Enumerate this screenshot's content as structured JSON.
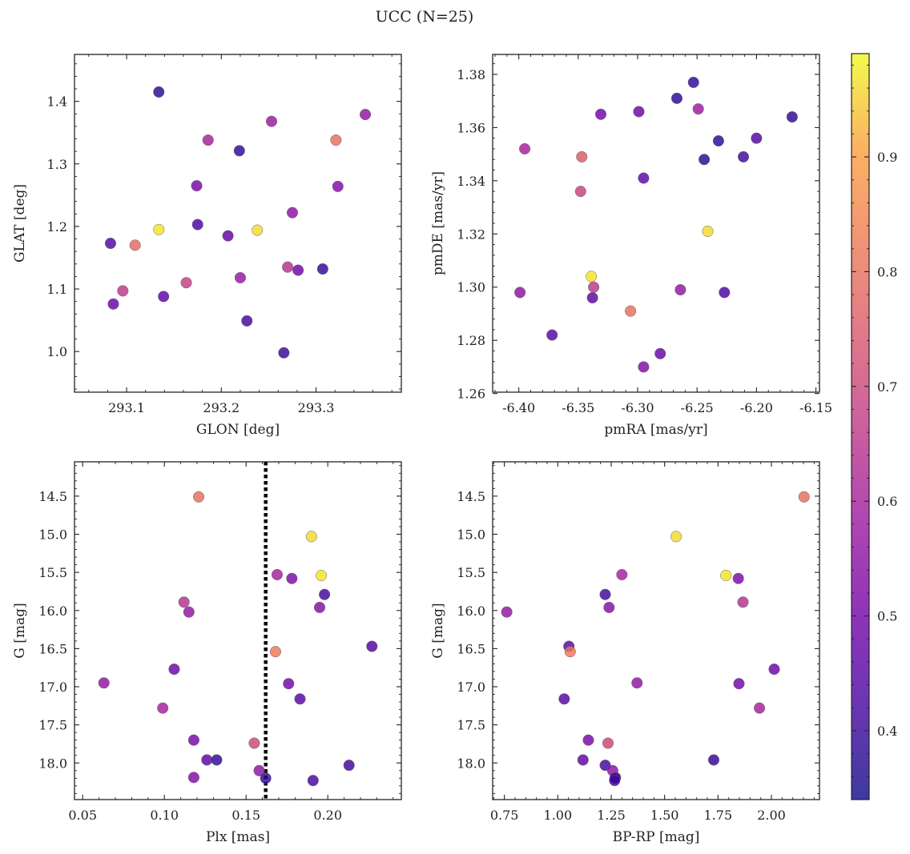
{
  "figure": {
    "title": "UCC (N=25)"
  },
  "colorbar": {
    "range": [
      0.34,
      0.99
    ],
    "ticks": [
      0.4,
      0.5,
      0.6,
      0.7,
      0.8,
      0.9
    ],
    "tick_labels": [
      "0.4",
      "0.5",
      "0.6",
      "0.7",
      "0.8",
      "0.9"
    ],
    "colormap": "plasma"
  },
  "chart_data": [
    {
      "type": "scatter",
      "xlabel": "GLON [deg]",
      "ylabel": "GLAT [deg]",
      "xlim": [
        293.045,
        293.39
      ],
      "ylim": [
        0.935,
        1.475
      ],
      "xticks": [
        293.1,
        293.2,
        293.3
      ],
      "xtick_labels": [
        "293.1",
        "293.2",
        "293.3"
      ],
      "yticks": [
        1.0,
        1.1,
        1.2,
        1.3,
        1.4
      ],
      "ytick_labels": [
        "1.0",
        "1.1",
        "1.2",
        "1.3",
        "1.4"
      ],
      "x": [
        293.134,
        293.083,
        293.109,
        293.096,
        293.086,
        293.134,
        293.139,
        293.163,
        293.174,
        293.175,
        293.186,
        293.207,
        293.219,
        293.22,
        293.227,
        293.238,
        293.253,
        293.266,
        293.27,
        293.275,
        293.281,
        293.307,
        293.321,
        293.323,
        293.352
      ],
      "y": [
        1.415,
        1.173,
        1.17,
        1.097,
        1.076,
        1.195,
        1.088,
        1.11,
        1.265,
        1.203,
        1.338,
        1.185,
        1.321,
        1.118,
        1.049,
        1.194,
        1.368,
        0.998,
        1.135,
        1.222,
        1.13,
        1.132,
        1.338,
        1.264,
        1.379
      ],
      "c": [
        0.38,
        0.44,
        0.79,
        0.66,
        0.48,
        0.97,
        0.46,
        0.68,
        0.51,
        0.43,
        0.6,
        0.47,
        0.38,
        0.57,
        0.41,
        0.96,
        0.58,
        0.4,
        0.64,
        0.55,
        0.49,
        0.39,
        0.8,
        0.53,
        0.56
      ]
    },
    {
      "type": "scatter",
      "xlabel": "pmRA [mas/yr]",
      "ylabel": "pmDE [mas/yr]",
      "xlim": [
        -6.422,
        -6.147
      ],
      "ylim": [
        1.2605,
        1.3875
      ],
      "xticks": [
        -6.4,
        -6.35,
        -6.3,
        -6.25,
        -6.2,
        -6.15
      ],
      "xtick_labels": [
        "-6.40",
        "-6.35",
        "-6.30",
        "-6.25",
        "-6.20",
        "-6.15"
      ],
      "yticks": [
        1.26,
        1.28,
        1.3,
        1.32,
        1.34,
        1.36,
        1.38
      ],
      "ytick_labels": [
        "1.26",
        "1.28",
        "1.30",
        "1.32",
        "1.34",
        "1.36",
        "1.38"
      ],
      "x": [
        -6.395,
        -6.399,
        -6.372,
        -6.348,
        -6.347,
        -6.339,
        -6.338,
        -6.337,
        -6.331,
        -6.306,
        -6.299,
        -6.295,
        -6.295,
        -6.281,
        -6.267,
        -6.264,
        -6.253,
        -6.249,
        -6.244,
        -6.241,
        -6.232,
        -6.227,
        -6.211,
        -6.2,
        -6.17
      ],
      "y": [
        1.352,
        1.298,
        1.282,
        1.336,
        1.349,
        1.304,
        1.296,
        1.3,
        1.365,
        1.291,
        1.366,
        1.341,
        1.27,
        1.275,
        1.371,
        1.299,
        1.377,
        1.367,
        1.348,
        1.321,
        1.355,
        1.298,
        1.349,
        1.356,
        1.364
      ],
      "c": [
        0.6,
        0.55,
        0.45,
        0.69,
        0.75,
        0.97,
        0.46,
        0.66,
        0.5,
        0.8,
        0.49,
        0.46,
        0.53,
        0.48,
        0.38,
        0.56,
        0.39,
        0.58,
        0.38,
        0.96,
        0.38,
        0.43,
        0.41,
        0.44,
        0.38
      ]
    },
    {
      "type": "scatter",
      "xlabel": "Plx [mas]",
      "ylabel": "G [mag]",
      "xlim": [
        0.045,
        0.245
      ],
      "ylim": [
        18.48,
        14.05
      ],
      "y_inverted": true,
      "xticks": [
        0.05,
        0.1,
        0.15,
        0.2
      ],
      "xtick_labels": [
        "0.05",
        "0.10",
        "0.15",
        "0.20"
      ],
      "yticks": [
        14.5,
        15.0,
        15.5,
        16.0,
        16.5,
        17.0,
        17.5,
        18.0
      ],
      "ytick_labels": [
        "14.5",
        "15.0",
        "15.5",
        "16.0",
        "16.5",
        "17.0",
        "17.5",
        "18.0"
      ],
      "vline": {
        "x": 0.162,
        "style": "dotted"
      },
      "x": [
        0.121,
        0.19,
        0.196,
        0.169,
        0.178,
        0.198,
        0.112,
        0.115,
        0.195,
        0.227,
        0.168,
        0.106,
        0.063,
        0.176,
        0.183,
        0.099,
        0.118,
        0.155,
        0.126,
        0.132,
        0.213,
        0.158,
        0.118,
        0.162,
        0.191
      ],
      "y": [
        14.51,
        15.03,
        15.54,
        15.53,
        15.58,
        15.79,
        15.89,
        16.02,
        15.96,
        16.47,
        16.54,
        16.77,
        16.95,
        16.96,
        17.16,
        17.28,
        17.7,
        17.74,
        17.96,
        17.96,
        18.03,
        18.1,
        18.19,
        18.2,
        18.23
      ],
      "c": [
        0.8,
        0.96,
        0.97,
        0.6,
        0.52,
        0.41,
        0.64,
        0.56,
        0.54,
        0.44,
        0.82,
        0.49,
        0.56,
        0.5,
        0.45,
        0.6,
        0.51,
        0.7,
        0.46,
        0.39,
        0.41,
        0.55,
        0.53,
        0.39,
        0.42
      ]
    },
    {
      "type": "scatter",
      "xlabel": "BP-RP [mag]",
      "ylabel": "G [mag]",
      "xlim": [
        0.695,
        2.225
      ],
      "ylim": [
        18.48,
        14.05
      ],
      "y_inverted": true,
      "xticks": [
        0.75,
        1.0,
        1.25,
        1.5,
        1.75,
        2.0
      ],
      "xtick_labels": [
        "0.75",
        "1.00",
        "1.25",
        "1.50",
        "1.75",
        "2.00"
      ],
      "yticks": [
        14.5,
        15.0,
        15.5,
        16.0,
        16.5,
        17.0,
        17.5,
        18.0
      ],
      "ytick_labels": [
        "14.5",
        "15.0",
        "15.5",
        "16.0",
        "16.5",
        "17.0",
        "17.5",
        "18.0"
      ],
      "x": [
        2.153,
        1.554,
        1.787,
        1.3,
        1.845,
        1.222,
        1.867,
        0.761,
        1.24,
        1.052,
        1.058,
        2.013,
        1.371,
        1.848,
        1.03,
        1.944,
        1.143,
        1.235,
        1.118,
        1.73,
        1.222,
        1.257,
        1.27,
        1.268,
        1.266
      ],
      "y": [
        14.51,
        15.03,
        15.54,
        15.53,
        15.58,
        15.79,
        15.89,
        16.02,
        15.96,
        16.47,
        16.54,
        16.77,
        16.95,
        16.96,
        17.16,
        17.28,
        17.7,
        17.74,
        17.96,
        17.96,
        18.03,
        18.1,
        18.19,
        18.2,
        18.23
      ],
      "c": [
        0.8,
        0.96,
        0.97,
        0.6,
        0.52,
        0.41,
        0.64,
        0.56,
        0.54,
        0.44,
        0.82,
        0.49,
        0.56,
        0.5,
        0.45,
        0.6,
        0.51,
        0.7,
        0.46,
        0.39,
        0.41,
        0.55,
        0.53,
        0.39,
        0.42
      ]
    }
  ]
}
